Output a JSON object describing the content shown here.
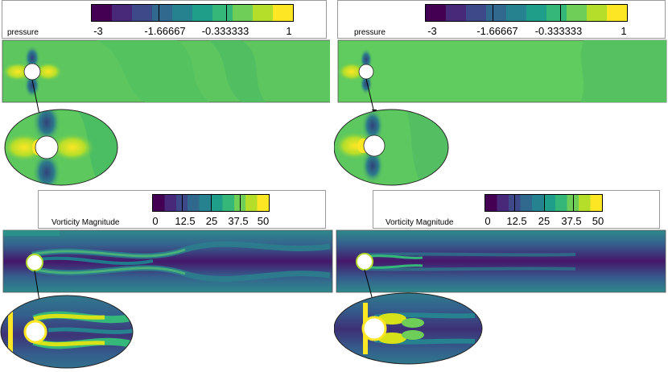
{
  "panels": [
    {
      "id": "pressure-left",
      "variable": "pressure",
      "ticks": [
        "-3",
        "-1.66667",
        "-0.333333",
        "1"
      ],
      "colormap": [
        "#440154",
        "#482878",
        "#3e4989",
        "#31688e",
        "#26828e",
        "#1f9e89",
        "#35b779",
        "#6ece58",
        "#b5de2b",
        "#fde725"
      ]
    },
    {
      "id": "pressure-right",
      "variable": "pressure",
      "ticks": [
        "-3",
        "-1.66667",
        "-0.333333",
        "1"
      ],
      "colormap": [
        "#440154",
        "#482878",
        "#3e4989",
        "#31688e",
        "#26828e",
        "#1f9e89",
        "#35b779",
        "#6ece58",
        "#b5de2b",
        "#fde725"
      ]
    },
    {
      "id": "vorticity-left",
      "variable": "Vorticity Magnitude",
      "ticks": [
        "0",
        "12.5",
        "25",
        "37.5",
        "50"
      ],
      "colormap": [
        "#440154",
        "#482878",
        "#3e4989",
        "#31688e",
        "#26828e",
        "#1f9e89",
        "#35b779",
        "#6ece58",
        "#b5de2b",
        "#fde725"
      ]
    },
    {
      "id": "vorticity-right",
      "variable": "Vorticity Magnitude",
      "ticks": [
        "0",
        "12.5",
        "25",
        "37.5",
        "50"
      ],
      "colormap": [
        "#440154",
        "#482878",
        "#3e4989",
        "#31688e",
        "#26828e",
        "#1f9e89",
        "#35b779",
        "#6ece58",
        "#b5de2b",
        "#fde725"
      ]
    }
  ],
  "field_colors": {
    "pressure_background": "#5cc85e",
    "pressure_high": "#f6e636",
    "pressure_low": "#2a5d8c",
    "vorticity_background": "#2d6f8e",
    "vorticity_low": "#451469",
    "vorticity_high": "#e8e31f",
    "cylinder": "#ffffff"
  }
}
